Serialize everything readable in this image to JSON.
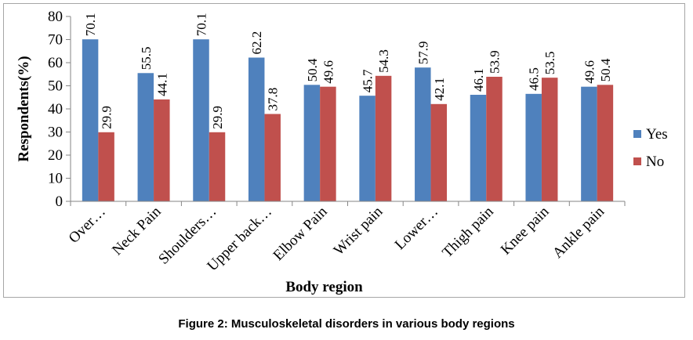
{
  "chart_data": {
    "type": "bar",
    "categories": [
      "Over…",
      "Neck Pain",
      "Shoulders…",
      "Upper back…",
      "Elbow Pain",
      "Wrist pain",
      "Lower…",
      "Thigh pain",
      "Knee pain",
      "Ankle pain"
    ],
    "series": [
      {
        "name": "Yes",
        "color": "#4f81bd",
        "values": [
          70.1,
          55.5,
          70.1,
          62.2,
          50.4,
          45.7,
          57.9,
          46.1,
          46.5,
          49.6
        ]
      },
      {
        "name": "No",
        "color": "#c0504d",
        "values": [
          29.9,
          44.1,
          29.9,
          37.8,
          49.6,
          54.3,
          42.1,
          53.9,
          53.5,
          50.4
        ]
      }
    ],
    "data_labels": [
      [
        "70.1",
        "55.5",
        "70.1",
        "62.2",
        "50.4",
        "45.7",
        "57.9",
        "46.1",
        "46.5",
        "49.6"
      ],
      [
        "29.9",
        "44.1",
        "29.9",
        "37.8",
        "49.6",
        "54.3",
        "42.1",
        "53.9",
        "53.5",
        "50.4"
      ]
    ],
    "xlabel": "Body region",
    "ylabel": "Respondents(%)",
    "ylim": [
      0,
      80
    ],
    "yticks": [
      "0",
      "10",
      "20",
      "30",
      "40",
      "50",
      "60",
      "70",
      "80"
    ],
    "legend_position": "right",
    "grid": false
  },
  "caption": "Figure 2: Musculoskeletal disorders in various body regions"
}
